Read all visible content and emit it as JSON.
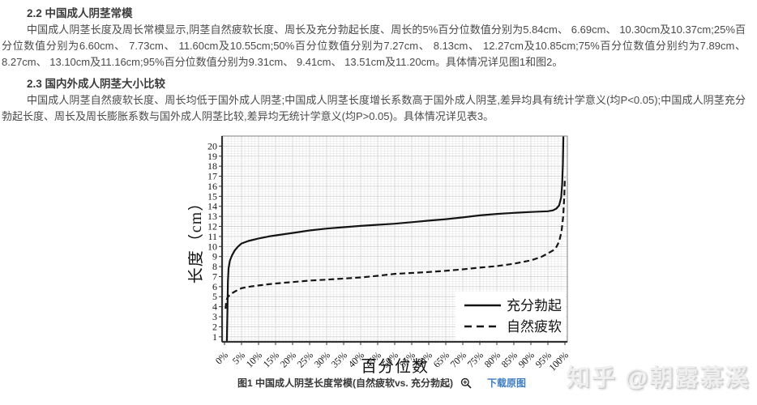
{
  "article": {
    "heading_2_2": "2.2 中国成人阴茎常模",
    "para_2_2": "中国成人阴茎长度及周长常模显示,阴茎自然疲软长度、周长及充分勃起长度、周长的5%百分位数值分别为5.84cm、 6.69cm、 10.30cm及10.37cm;25%百分位数值分别为6.60cm、 7.73cm、 11.60cm及10.55cm;50%百分位数值分别为7.27cm、 8.13cm、 12.27cm及10.85cm;75%百分位数值分别约为7.89cm、 8.27cm、 13.10cm及11.16cm;95%百分位数值分别为9.31cm、 9.41cm、 13.51cm及11.20cm。具体情况详见图1和图2。",
    "heading_2_3": "2.3 国内外成人阴茎大小比较",
    "para_2_3": "中国成人阴茎自然疲软长度、周长均低于国外成人阴茎;中国成人阴茎长度增长系数高于国外成人阴茎,差异均具有统计学意义(均P<0.05);中国成人阴茎充分勃起长度、周长及周长膨胀系数与国外成人阴茎比较,差异均无统计学意义(均P>0.05)。具体情况详见表3。"
  },
  "figure": {
    "caption": "图1 中国成人阴茎长度常模(自然疲软vs. 充分勃起)",
    "zoom_icon": "zoom-in-magnifier-icon",
    "download_link": "下载原图",
    "link_color": "#3e7dbf"
  },
  "watermark": {
    "text": "知乎 @朝露慕溪"
  },
  "chart_data": {
    "type": "line",
    "title": "",
    "xlabel": "百分位数",
    "ylabel": "长度（cm）",
    "xlim": [
      0,
      100
    ],
    "ylim": [
      0.5,
      21
    ],
    "grid": true,
    "legend_position": "lower-right",
    "xticklabels": [
      "0%",
      "5%",
      "10%",
      "15%",
      "20%",
      "25%",
      "30%",
      "35%",
      "40%",
      "45%",
      "50%",
      "55%",
      "60%",
      "65%",
      "70%",
      "75%",
      "80%",
      "85%",
      "90%",
      "95%",
      "100%"
    ],
    "yticks": [
      1,
      2,
      3,
      4,
      5,
      6,
      7,
      8,
      9,
      10,
      11,
      12,
      13,
      14,
      15,
      16,
      17,
      18,
      19,
      20
    ],
    "series": [
      {
        "name": "充分勃起",
        "style": "solid",
        "color": "#141414",
        "percentiles": {
          "5%": 10.3,
          "25%": 11.6,
          "50%": 12.27,
          "75%": 13.1,
          "95%": 13.51
        },
        "points": [
          [
            0.7,
            0.5
          ],
          [
            0.85,
            3.5
          ],
          [
            1,
            6.5
          ],
          [
            1.2,
            7.8
          ],
          [
            1.6,
            8.6
          ],
          [
            2.2,
            9.1
          ],
          [
            3,
            9.6
          ],
          [
            4,
            10.0
          ],
          [
            5,
            10.3
          ],
          [
            7,
            10.55
          ],
          [
            10,
            10.8
          ],
          [
            13,
            11.0
          ],
          [
            16,
            11.15
          ],
          [
            20,
            11.35
          ],
          [
            25,
            11.6
          ],
          [
            30,
            11.78
          ],
          [
            35,
            11.92
          ],
          [
            40,
            12.05
          ],
          [
            45,
            12.16
          ],
          [
            50,
            12.27
          ],
          [
            55,
            12.42
          ],
          [
            60,
            12.57
          ],
          [
            65,
            12.72
          ],
          [
            70,
            12.9
          ],
          [
            75,
            13.1
          ],
          [
            80,
            13.24
          ],
          [
            85,
            13.35
          ],
          [
            90,
            13.44
          ],
          [
            95,
            13.51
          ],
          [
            96.5,
            13.6
          ],
          [
            97.5,
            13.78
          ],
          [
            98.3,
            14.1
          ],
          [
            98.9,
            14.9
          ],
          [
            99.2,
            16.2
          ],
          [
            99.4,
            18.2
          ],
          [
            99.55,
            21
          ]
        ]
      },
      {
        "name": "自然疲软",
        "style": "dashed",
        "color": "#141414",
        "percentiles": {
          "5%": 5.84,
          "25%": 6.6,
          "50%": 7.27,
          "75%": 7.89,
          "95%": 9.31
        },
        "points": [
          [
            0.3,
            3.8
          ],
          [
            0.5,
            4.5
          ],
          [
            0.8,
            4.85
          ],
          [
            1.2,
            5.05
          ],
          [
            2,
            5.3
          ],
          [
            3,
            5.5
          ],
          [
            4,
            5.68
          ],
          [
            5,
            5.84
          ],
          [
            7,
            5.98
          ],
          [
            10,
            6.12
          ],
          [
            13,
            6.24
          ],
          [
            16,
            6.34
          ],
          [
            20,
            6.46
          ],
          [
            25,
            6.6
          ],
          [
            30,
            6.7
          ],
          [
            35,
            6.8
          ],
          [
            40,
            6.92
          ],
          [
            45,
            7.08
          ],
          [
            50,
            7.27
          ],
          [
            55,
            7.36
          ],
          [
            60,
            7.46
          ],
          [
            65,
            7.58
          ],
          [
            70,
            7.72
          ],
          [
            75,
            7.89
          ],
          [
            80,
            8.05
          ],
          [
            85,
            8.28
          ],
          [
            90,
            8.62
          ],
          [
            93,
            8.95
          ],
          [
            95,
            9.31
          ],
          [
            96.5,
            9.6
          ],
          [
            97.5,
            9.95
          ],
          [
            98.3,
            10.5
          ],
          [
            99,
            11.5
          ],
          [
            99.5,
            13.0
          ],
          [
            99.8,
            15.0
          ],
          [
            100,
            16.9
          ]
        ]
      }
    ]
  }
}
